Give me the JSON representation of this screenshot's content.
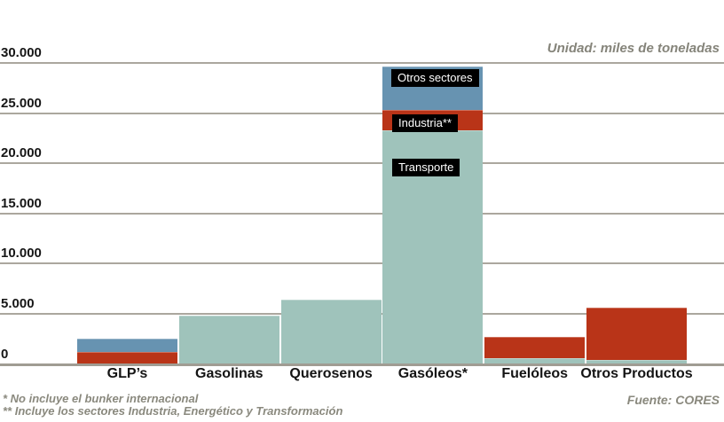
{
  "header": {
    "unit_label": "Unidad: miles de toneladas"
  },
  "chart_data": {
    "type": "bar",
    "stacked": true,
    "unit": "miles de toneladas",
    "categories": [
      "GLP’s",
      "Gasolinas",
      "Querosenos",
      "Gasóleos*",
      "Fuelóleos",
      "Otros Productos"
    ],
    "series": [
      {
        "name": "Transporte",
        "color": "#9fc3bb",
        "values": [
          0,
          4700,
          6300,
          23200,
          500,
          300
        ]
      },
      {
        "name": "Industria**",
        "color": "#b93418",
        "values": [
          1100,
          0,
          0,
          2000,
          2100,
          5250
        ]
      },
      {
        "name": "Otros sectores",
        "color": "#6793b1",
        "values": [
          1350,
          0,
          0,
          4400,
          0,
          0
        ]
      }
    ],
    "ylim": [
      0,
      30000
    ],
    "ytick_labels": [
      "30.000",
      "25.000",
      "20.000",
      "15.000",
      "10.000",
      "5.000",
      "0"
    ],
    "grid": true,
    "legend_position": "labels-on-tallest-bar"
  },
  "segment_labels": {
    "otros_sectores": "Otros sectores",
    "industria": "Industria**",
    "transporte": "Transporte"
  },
  "footnotes": {
    "line1": "* No incluye el bunker internacional",
    "line2": "** Incluye los sectores Industria, Energético y Transformación",
    "source": "Fuente: CORES"
  },
  "colors": {
    "transporte": "#9fc3bb",
    "industria": "#b93418",
    "otros_sectores": "#6793b1",
    "gridline": "#aba79e",
    "baseline": "#a09c93",
    "gray_text": "#85847a"
  }
}
